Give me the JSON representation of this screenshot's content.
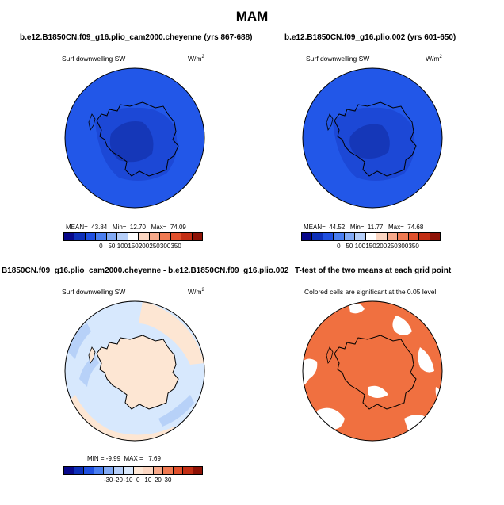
{
  "main_title": "MAM",
  "panels": [
    {
      "title": "b.e12.B1850CN.f09_g16.plio_cam2000.cheyenne (yrs 867-688)",
      "field_label": "Surf downwelling SW",
      "units": "W/m",
      "units_sup": "2",
      "stats": "MEAN=  43.84   Min=  12.70   Max=  74.09",
      "colorbar_ticks": [
        "0",
        "50",
        "100",
        "150",
        "200",
        "250",
        "300",
        "350"
      ]
    },
    {
      "title": "b.e12.B1850CN.f09_g16.plio.002 (yrs 601-650)",
      "field_label": "Surf downwelling SW",
      "units": "W/m",
      "units_sup": "2",
      "stats": "MEAN=  44.52   Min=  11.77   Max=  74.68",
      "colorbar_ticks": [
        "0",
        "50",
        "100",
        "150",
        "200",
        "250",
        "300",
        "350"
      ]
    },
    {
      "title": "B1850CN.f09_g16.plio_cam2000.cheyenne - b.e12.B1850CN.f09_g16.plio.002",
      "field_label": "Surf downwelling SW",
      "units": "W/m",
      "units_sup": "2",
      "stats": "MIN = -9.99  MAX =   7.69",
      "colorbar_ticks": [
        "-30",
        "-20",
        "-10",
        "0",
        "10",
        "20",
        "30"
      ]
    },
    {
      "title": "T-test of the two means at each grid point",
      "field_label": "Colored cells are significant at the 0.05 level"
    }
  ],
  "colors": {
    "abs_palette": [
      "#08088a",
      "#0d2fb8",
      "#1f4fe0",
      "#4a7ef0",
      "#82aaf5",
      "#b6cff9",
      "#ffffff",
      "#fbd6c2",
      "#f7a98a",
      "#f07a52",
      "#e0502c",
      "#c22e14",
      "#8e1206"
    ],
    "diff_palette": [
      "#08088a",
      "#0d2fb8",
      "#1f4fe0",
      "#4a7ef0",
      "#82aaf5",
      "#b6cff9",
      "#d9e8fc",
      "#fde7d6",
      "#fbd6c2",
      "#f7a98a",
      "#f07a52",
      "#e0502c",
      "#c22e14",
      "#8e1206"
    ],
    "ocean_abs": "#2257e8",
    "inner_abs": "#1c48d6",
    "core_abs": "#1537b8",
    "ocean_diff": "#d7e8fd",
    "band_diff_light": "#fde6d3",
    "band_diff_blue": "#b7d1f8",
    "ttest_sig": "#f07040"
  }
}
